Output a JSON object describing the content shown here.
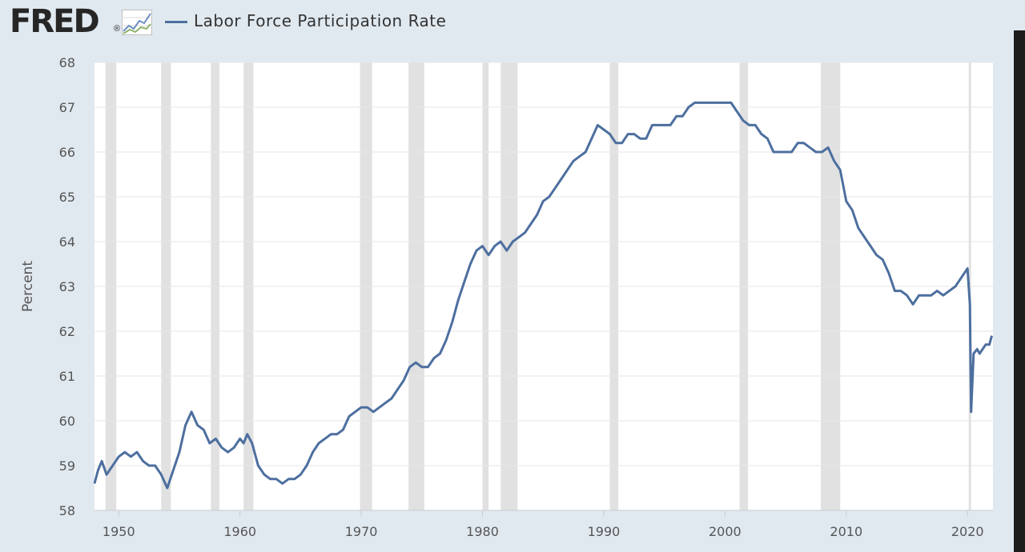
{
  "header": {
    "logo_text": "FRED",
    "logo_reg": "®",
    "legend_label": "Labor Force Participation Rate"
  },
  "colors": {
    "page_background": "#e1e9f0",
    "plot_background": "#ffffff",
    "series_line": "#4d6f9f",
    "recession_shade": "#e1e1e1",
    "gridline": "#e6e6e6"
  },
  "icons": {
    "logo_graph": "line-chart-icon"
  },
  "chart_data": {
    "type": "line",
    "title": "",
    "xlabel": "",
    "ylabel": "Percent",
    "xlim": [
      1948.0,
      2022.1
    ],
    "ylim": [
      58,
      68
    ],
    "grid": "horizontal",
    "legend_position": "top-left",
    "x_ticks": [
      1950,
      1960,
      1970,
      1980,
      1990,
      2000,
      2010,
      2020
    ],
    "y_ticks": [
      58,
      59,
      60,
      61,
      62,
      63,
      64,
      65,
      66,
      67,
      68
    ],
    "recessions": [
      [
        1948.9,
        1949.8
      ],
      [
        1953.5,
        1954.3
      ],
      [
        1957.6,
        1958.3
      ],
      [
        1960.3,
        1961.1
      ],
      [
        1969.9,
        1970.9
      ],
      [
        1973.9,
        1975.2
      ],
      [
        1980.0,
        1980.5
      ],
      [
        1981.5,
        1982.9
      ],
      [
        1990.5,
        1991.2
      ],
      [
        2001.2,
        2001.9
      ],
      [
        2007.9,
        2009.5
      ],
      [
        2020.1,
        2020.3
      ]
    ],
    "series": [
      {
        "name": "Labor Force Participation Rate",
        "x": [
          1948.0,
          1948.3,
          1948.6,
          1949.0,
          1949.5,
          1950.0,
          1950.5,
          1951.0,
          1951.5,
          1952.0,
          1952.5,
          1953.0,
          1953.5,
          1954.0,
          1954.5,
          1955.0,
          1955.5,
          1956.0,
          1956.5,
          1957.0,
          1957.5,
          1958.0,
          1958.5,
          1959.0,
          1959.5,
          1960.0,
          1960.3,
          1960.6,
          1961.0,
          1961.5,
          1962.0,
          1962.5,
          1963.0,
          1963.5,
          1964.0,
          1964.5,
          1965.0,
          1965.5,
          1966.0,
          1966.5,
          1967.0,
          1967.5,
          1968.0,
          1968.5,
          1969.0,
          1969.5,
          1970.0,
          1970.5,
          1971.0,
          1971.5,
          1972.0,
          1972.5,
          1973.0,
          1973.5,
          1974.0,
          1974.5,
          1975.0,
          1975.5,
          1976.0,
          1976.5,
          1977.0,
          1977.5,
          1978.0,
          1978.5,
          1979.0,
          1979.5,
          1980.0,
          1980.5,
          1981.0,
          1981.5,
          1982.0,
          1982.5,
          1983.0,
          1983.5,
          1984.0,
          1984.5,
          1985.0,
          1985.5,
          1986.0,
          1986.5,
          1987.0,
          1987.5,
          1988.0,
          1988.5,
          1989.0,
          1989.5,
          1990.0,
          1990.5,
          1991.0,
          1991.5,
          1992.0,
          1992.5,
          1993.0,
          1993.5,
          1994.0,
          1994.5,
          1995.0,
          1995.5,
          1996.0,
          1996.5,
          1997.0,
          1997.5,
          1998.0,
          1998.5,
          1999.0,
          1999.5,
          2000.0,
          2000.5,
          2001.0,
          2001.5,
          2002.0,
          2002.5,
          2003.0,
          2003.5,
          2004.0,
          2004.5,
          2005.0,
          2005.5,
          2006.0,
          2006.5,
          2007.0,
          2007.5,
          2008.0,
          2008.5,
          2009.0,
          2009.5,
          2010.0,
          2010.5,
          2011.0,
          2011.5,
          2012.0,
          2012.5,
          2013.0,
          2013.5,
          2014.0,
          2014.5,
          2015.0,
          2015.5,
          2016.0,
          2016.5,
          2017.0,
          2017.5,
          2018.0,
          2018.5,
          2019.0,
          2019.5,
          2020.0,
          2020.2,
          2020.3,
          2020.5,
          2020.8,
          2021.0,
          2021.5,
          2021.8,
          2022.0
        ],
        "values": [
          58.6,
          58.9,
          59.1,
          58.8,
          59.0,
          59.2,
          59.3,
          59.2,
          59.3,
          59.1,
          59.0,
          59.0,
          58.8,
          58.5,
          58.9,
          59.3,
          59.9,
          60.2,
          59.9,
          59.8,
          59.5,
          59.6,
          59.4,
          59.3,
          59.4,
          59.6,
          59.5,
          59.7,
          59.5,
          59.0,
          58.8,
          58.7,
          58.7,
          58.6,
          58.7,
          58.7,
          58.8,
          59.0,
          59.3,
          59.5,
          59.6,
          59.7,
          59.7,
          59.8,
          60.1,
          60.2,
          60.3,
          60.3,
          60.2,
          60.3,
          60.4,
          60.5,
          60.7,
          60.9,
          61.2,
          61.3,
          61.2,
          61.2,
          61.4,
          61.5,
          61.8,
          62.2,
          62.7,
          63.1,
          63.5,
          63.8,
          63.9,
          63.7,
          63.9,
          64.0,
          63.8,
          64.0,
          64.1,
          64.2,
          64.4,
          64.6,
          64.9,
          65.0,
          65.2,
          65.4,
          65.6,
          65.8,
          65.9,
          66.0,
          66.3,
          66.6,
          66.5,
          66.4,
          66.2,
          66.2,
          66.4,
          66.4,
          66.3,
          66.3,
          66.6,
          66.6,
          66.6,
          66.6,
          66.8,
          66.8,
          67.0,
          67.1,
          67.1,
          67.1,
          67.1,
          67.1,
          67.1,
          67.1,
          66.9,
          66.7,
          66.6,
          66.6,
          66.4,
          66.3,
          66.0,
          66.0,
          66.0,
          66.0,
          66.2,
          66.2,
          66.1,
          66.0,
          66.0,
          66.1,
          65.8,
          65.6,
          64.9,
          64.7,
          64.3,
          64.1,
          63.9,
          63.7,
          63.6,
          63.3,
          62.9,
          62.9,
          62.8,
          62.6,
          62.8,
          62.8,
          62.8,
          62.9,
          62.8,
          62.9,
          63.0,
          63.2,
          63.4,
          62.6,
          60.2,
          61.5,
          61.6,
          61.5,
          61.7,
          61.7,
          61.9
        ]
      }
    ]
  }
}
